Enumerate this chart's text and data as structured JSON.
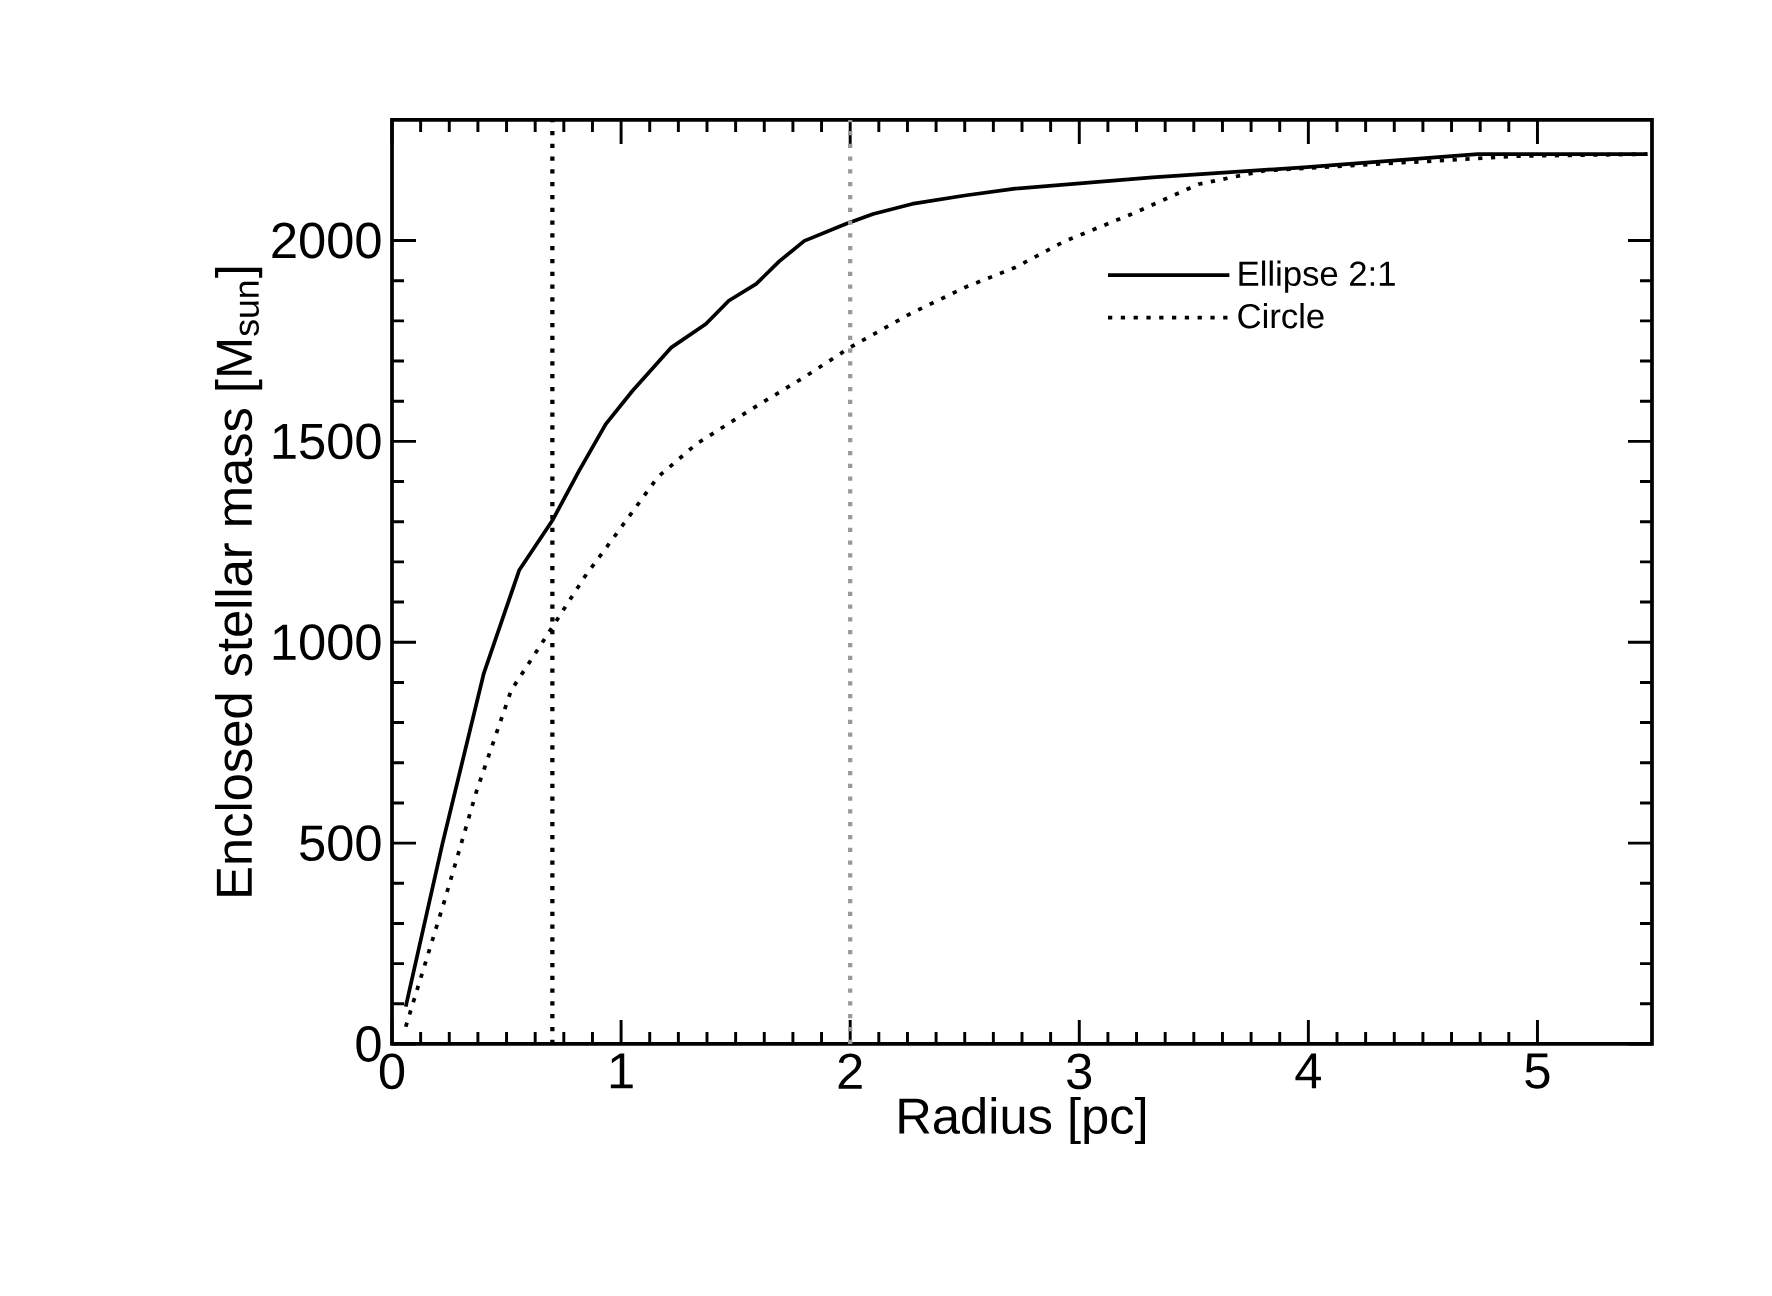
{
  "chart_data": {
    "type": "line",
    "xlabel": "Radius [pc]",
    "ylabel": "Enclosed stellar mass [M$_{sun}$]",
    "xlim": [
      0,
      5.5
    ],
    "ylim": [
      0,
      2300
    ],
    "xticks": [
      0,
      1,
      2,
      3,
      4,
      5
    ],
    "yticks": [
      0,
      500,
      1000,
      1500,
      2000
    ],
    "legend": "top right",
    "grid": false,
    "marker": "none",
    "series": [
      {
        "name": "Ellipse 2:1",
        "color": "#000000",
        "line_style": "solid",
        "x": [
          0.06,
          0.22,
          0.4,
          0.555,
          0.7,
          0.817,
          0.933,
          1.05,
          1.22,
          1.37,
          1.47,
          1.59,
          1.69,
          1.8,
          1.98,
          2.1,
          2.27,
          2.5,
          2.72,
          3.32,
          3.98,
          4.74,
          5.48
        ],
        "values": [
          93,
          498,
          921,
          1179,
          1303,
          1427,
          1543,
          1626,
          1734,
          1792,
          1850,
          1892,
          1948,
          1999,
          2041,
          2066,
          2091,
          2112,
          2129,
          2157,
          2182,
          2215,
          2215
        ]
      },
      {
        "name": "Circle",
        "color": "#000000",
        "line_style": "dotted",
        "x": [
          0.06,
          0.23,
          0.37,
          0.52,
          0.7,
          0.84,
          0.99,
          1.16,
          1.33,
          1.56,
          1.8,
          2.0,
          2.26,
          2.5,
          2.72,
          2.94,
          3.23,
          3.52,
          3.81,
          4.39,
          4.91,
          5.48
        ],
        "values": [
          43,
          358,
          631,
          880,
          1038,
          1162,
          1278,
          1411,
          1494,
          1577,
          1660,
          1734,
          1817,
          1883,
          1933,
          1999,
          2066,
          2140,
          2174,
          2193,
          2210,
          2215
        ]
      }
    ],
    "ref_lines": [
      {
        "axis": "x",
        "value": 0.7,
        "color": "#000000",
        "line_style": "dotted"
      },
      {
        "axis": "x",
        "value": 2.0,
        "color": "#999999",
        "line_style": "dotted"
      }
    ]
  }
}
